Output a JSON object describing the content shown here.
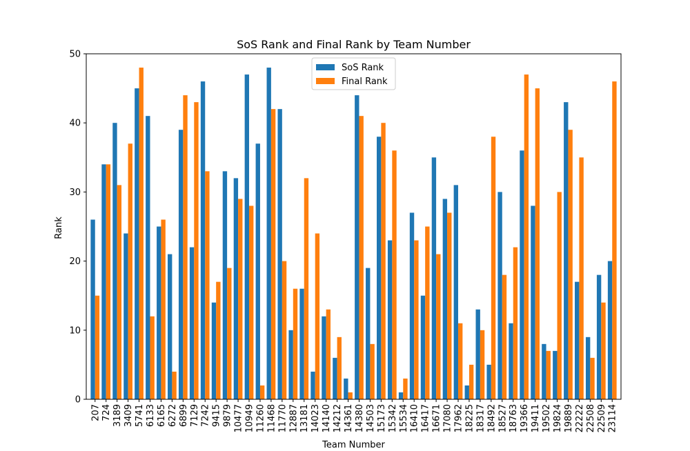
{
  "chart_data": {
    "type": "bar",
    "title": "SoS Rank and Final Rank by Team Number",
    "xlabel": "Team Number",
    "ylabel": "Rank",
    "ylim": [
      0,
      50
    ],
    "yticks": [
      "0",
      "10",
      "20",
      "30",
      "40",
      "50"
    ],
    "grid": false,
    "legend_position": "top-center",
    "categories": [
      "207",
      "724",
      "3189",
      "3409",
      "5741",
      "6133",
      "6165",
      "6272",
      "6899",
      "7129",
      "7242",
      "9415",
      "9879",
      "10477",
      "10949",
      "11260",
      "11468",
      "11770",
      "12887",
      "13181",
      "14023",
      "14140",
      "14212",
      "14361",
      "14380",
      "14503",
      "15173",
      "15342",
      "15534",
      "16410",
      "16417",
      "16671",
      "17080",
      "17962",
      "18225",
      "18317",
      "18492",
      "18527",
      "18763",
      "19366",
      "19411",
      "19502",
      "19824",
      "19889",
      "22222",
      "22508",
      "22509",
      "23114"
    ],
    "series": [
      {
        "name": "SoS Rank",
        "color": "#1f77b4",
        "values": [
          26,
          34,
          40,
          24,
          45,
          41,
          25,
          21,
          39,
          22,
          46,
          14,
          33,
          32,
          47,
          37,
          48,
          42,
          10,
          16,
          4,
          12,
          6,
          3,
          44,
          19,
          38,
          23,
          1,
          27,
          15,
          35,
          29,
          31,
          2,
          13,
          5,
          30,
          11,
          36,
          28,
          8,
          7,
          43,
          17,
          9,
          18,
          20
        ]
      },
      {
        "name": "Final Rank",
        "color": "#ff7f0e",
        "values": [
          15,
          34,
          31,
          37,
          48,
          12,
          26,
          4,
          44,
          43,
          33,
          17,
          19,
          29,
          28,
          2,
          42,
          20,
          16,
          32,
          24,
          13,
          9,
          1,
          41,
          8,
          40,
          36,
          3,
          23,
          25,
          21,
          27,
          11,
          5,
          10,
          38,
          18,
          22,
          47,
          45,
          7,
          30,
          39,
          35,
          6,
          14,
          46
        ]
      }
    ]
  }
}
